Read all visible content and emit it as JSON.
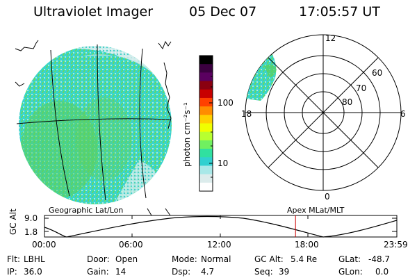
{
  "header": {
    "title": "Ultraviolet Imager",
    "date": "05 Dec 07",
    "time": "17:05:57 UT"
  },
  "colorbar": {
    "unit_label": "photon cm⁻²s⁻¹",
    "ticks": [
      "100",
      "10"
    ],
    "colors": [
      "#000000",
      "#3b0040",
      "#5a0060",
      "#8a0010",
      "#c80000",
      "#ff4000",
      "#ff8c00",
      "#ffd000",
      "#f0ff00",
      "#b8ff30",
      "#70f060",
      "#30e0a0",
      "#30d0d0",
      "#a8e8e8",
      "#dcecec",
      "#ffffff"
    ]
  },
  "polar_plot": {
    "label_top": "12",
    "label_left": "18",
    "label_right": "6",
    "label_bottom": "0",
    "lat_labels": [
      "60",
      "70",
      "80"
    ]
  },
  "map_labels": {
    "left": "Geographic Lat/Lon",
    "right": "Apex  MLat/MLT"
  },
  "altitude_plot": {
    "ylabel": "GC Alt",
    "ytick_top": "9.0",
    "ytick_bottom": "1.8",
    "xticks": [
      "00:00",
      "06:00",
      "12:00",
      "18:00",
      "23:59"
    ],
    "marker_time_hours": 17.1,
    "marker_color": "#cc0000"
  },
  "footer": {
    "row1": [
      {
        "key": "Flt:",
        "val": "LBHL"
      },
      {
        "key": "Door:",
        "val": "Open"
      },
      {
        "key": "Mode:",
        "val": "Normal"
      },
      {
        "key": "GC Alt:",
        "val": "5.4 Re"
      },
      {
        "key": "GLat:",
        "val": "-48.7"
      }
    ],
    "row2": [
      {
        "key": "IP:",
        "val": "36.0"
      },
      {
        "key": "Gain:",
        "val": "14"
      },
      {
        "key": "Dsp:",
        "val": "4.7"
      },
      {
        "key": "Seq:",
        "val": "39"
      },
      {
        "key": "GLon:",
        "val": "0.0"
      }
    ]
  }
}
